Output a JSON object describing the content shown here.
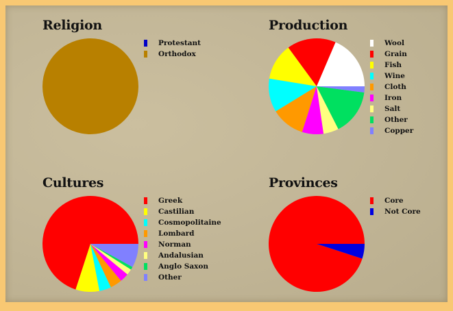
{
  "chart_data": [
    {
      "type": "pie",
      "title": "Religion",
      "categories": [
        "Protestant",
        "Orthodox"
      ],
      "values": [
        0,
        100
      ],
      "colors": [
        "#0000c8",
        "#b88000"
      ]
    },
    {
      "type": "pie",
      "title": "Production",
      "categories": [
        "Wool",
        "Grain",
        "Fish",
        "Wine",
        "Cloth",
        "Iron",
        "Salt",
        "Other",
        "Copper"
      ],
      "values": [
        18,
        16,
        12,
        11,
        11,
        7,
        5,
        15,
        2
      ],
      "colors": [
        "#ffffff",
        "#ff0000",
        "#ffff00",
        "#00ffff",
        "#ff9900",
        "#ff00ff",
        "#ffff80",
        "#00e060",
        "#8080ff"
      ]
    },
    {
      "type": "pie",
      "title": "Cultures",
      "categories": [
        "Greek",
        "Castilian",
        "Cosmopolitaine",
        "Lombard",
        "Norman",
        "Andalusian",
        "Anglo Saxon",
        "Other"
      ],
      "values": [
        70,
        8,
        4,
        4,
        3,
        2,
        1,
        8
      ],
      "colors": [
        "#ff0000",
        "#ffff00",
        "#00ffff",
        "#ff9900",
        "#ff00ff",
        "#ffff80",
        "#00e060",
        "#8080ff"
      ]
    },
    {
      "type": "pie",
      "title": "Provinces",
      "categories": [
        "Core",
        "Not Core"
      ],
      "values": [
        95,
        5
      ],
      "colors": [
        "#ff0000",
        "#0000e0"
      ]
    }
  ]
}
